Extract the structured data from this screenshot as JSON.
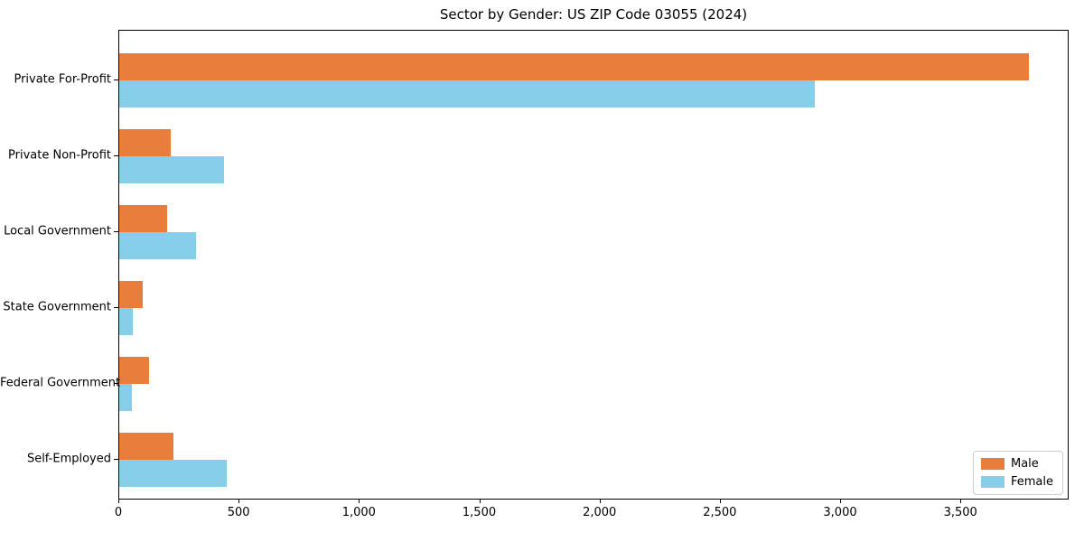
{
  "chart_data": {
    "type": "bar",
    "orientation": "horizontal",
    "title": "Sector by Gender: US ZIP Code 03055 (2024)",
    "categories": [
      "Private For-Profit",
      "Private Non-Profit",
      "Local Government",
      "State Government",
      "Federal Government",
      "Self-Employed"
    ],
    "series": [
      {
        "name": "Male",
        "color": "#e87d3c",
        "values": [
          3780,
          212,
          198,
          97,
          125,
          226
        ]
      },
      {
        "name": "Female",
        "color": "#87ceeb",
        "values": [
          2890,
          437,
          320,
          56,
          54,
          447
        ]
      }
    ],
    "xlim": [
      0,
      3950
    ],
    "xticks": [
      0,
      500,
      1000,
      1500,
      2000,
      2500,
      3000,
      3500
    ],
    "xtick_labels": [
      "0",
      "500",
      "1,000",
      "1,500",
      "2,000",
      "2,500",
      "3,000",
      "3,500"
    ],
    "xlabel": "",
    "ylabel": "",
    "grid": false,
    "legend": {
      "position": "lower right",
      "items": [
        {
          "label": "Male",
          "color": "#e87d3c"
        },
        {
          "label": "Female",
          "color": "#87ceeb"
        }
      ]
    }
  }
}
